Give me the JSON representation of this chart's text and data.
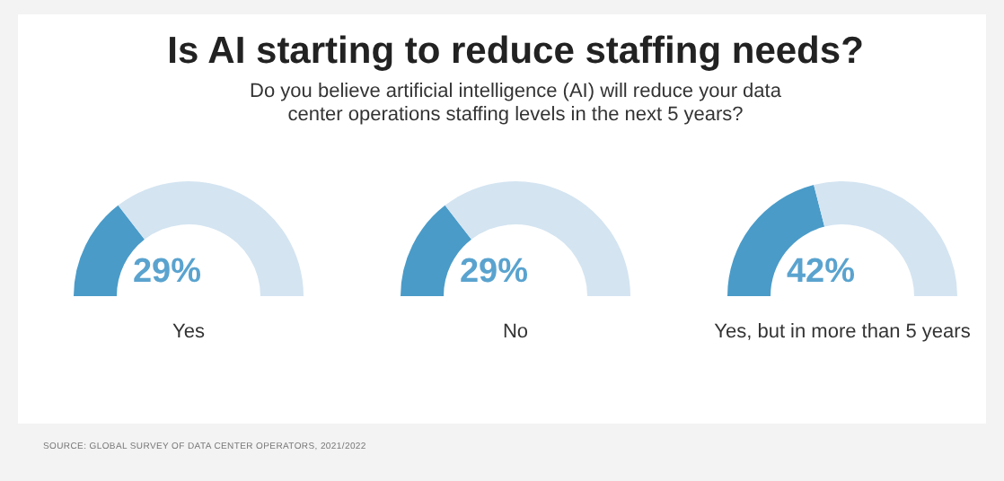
{
  "chart_data": [
    {
      "type": "donut",
      "title": "Is AI starting to reduce staffing needs?",
      "subtitle": "Do you believe artificial intelligence (AI) will reduce your data center operations staffing levels in the next 5 years?",
      "annotations": [
        "SOURCE: GLOBAL SURVEY OF DATA CENTER OPERATORS, 2021/2022"
      ],
      "xlabel": "Yes",
      "categories": [
        null,
        null
      ],
      "values": [
        29,
        71
      ],
      "colors": [
        "#4a9bc8",
        "#d4e4f1"
      ],
      "value_labels": [
        "29%",
        null
      ]
    },
    {
      "type": "donut",
      "xlabel": "No",
      "categories": [
        null,
        null
      ],
      "values": [
        29,
        71
      ],
      "colors": [
        "#4a9bc8",
        "#d4e4f1"
      ],
      "value_labels": [
        "29%",
        null
      ]
    },
    {
      "type": "donut",
      "xlabel": "Yes, but in more than 5 years",
      "categories": [
        null,
        null
      ],
      "values": [
        42,
        58
      ],
      "colors": [
        "#4a9bc8",
        "#d4e4f1"
      ],
      "value_labels": [
        "42%",
        null
      ]
    }
  ]
}
